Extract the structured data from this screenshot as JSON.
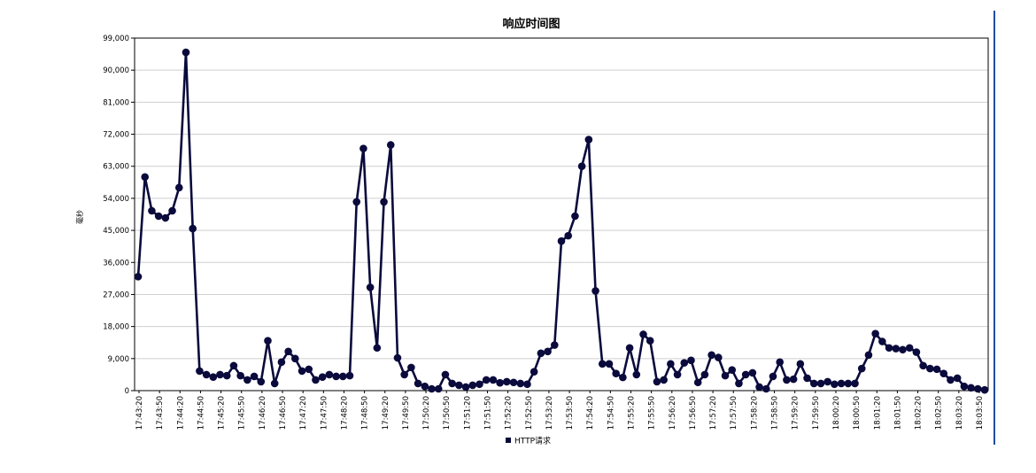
{
  "chart_data": {
    "type": "line",
    "title": "响应时间图",
    "xlabel": "",
    "ylabel": "毫秒",
    "ylim": [
      0,
      99000
    ],
    "yticks": [
      "0",
      "9,000",
      "18,000",
      "27,000",
      "36,000",
      "45,000",
      "54,000",
      "63,000",
      "72,000",
      "81,000",
      "90,000",
      "99,000"
    ],
    "ytick_values": [
      0,
      9000,
      18000,
      27000,
      36000,
      45000,
      54000,
      63000,
      72000,
      81000,
      90000,
      99000
    ],
    "xtick_labels": [
      "17:43:20",
      "17:43:50",
      "17:44:20",
      "17:44:50",
      "17:45:20",
      "17:45:50",
      "17:46:20",
      "17:46:50",
      "17:47:20",
      "17:47:50",
      "17:48:20",
      "17:48:50",
      "17:49:20",
      "17:49:50",
      "17:50:20",
      "17:50:50",
      "17:51:20",
      "17:51:50",
      "17:52:20",
      "17:52:50",
      "17:53:20",
      "17:53:50",
      "17:54:20",
      "17:54:50",
      "17:55:20",
      "17:55:50",
      "17:56:20",
      "17:56:50",
      "17:57:20",
      "17:57:50",
      "17:58:20",
      "17:58:50",
      "17:59:20",
      "17:59:50",
      "18:00:20",
      "18:00:50",
      "18:01:20",
      "18:01:50",
      "18:02:20",
      "18:02:50",
      "18:03:20",
      "18:03:50"
    ],
    "grid": true,
    "legend_position": "bottom",
    "colors": {
      "line": "#0a0a3c",
      "marker": "#0a0a3c",
      "grid": "#cfcfcf",
      "axis": "#000000"
    },
    "series": [
      {
        "name": "HTTP请求",
        "values": [
          32000,
          60000,
          50500,
          49000,
          48500,
          50500,
          57000,
          95000,
          45500,
          5500,
          4500,
          3800,
          4500,
          4200,
          7000,
          4200,
          3000,
          4000,
          2500,
          14000,
          2000,
          8000,
          11000,
          9000,
          5500,
          6000,
          3000,
          3800,
          4500,
          4000,
          4000,
          4200,
          53000,
          68000,
          29000,
          12000,
          53000,
          69000,
          9200,
          4500,
          6500,
          2000,
          1200,
          500,
          500,
          4500,
          2000,
          1500,
          1000,
          1500,
          1800,
          3000,
          3000,
          2200,
          2500,
          2300,
          2000,
          1800,
          5300,
          10500,
          11000,
          12800,
          42000,
          43500,
          49000,
          63000,
          70500,
          28000,
          7500,
          7500,
          4800,
          3700,
          12000,
          4500,
          15800,
          14000,
          2500,
          3000,
          7500,
          4500,
          7800,
          8500,
          2300,
          4500,
          10000,
          9300,
          4200,
          5800,
          2000,
          4500,
          5000,
          1000,
          500,
          4000,
          8000,
          3000,
          3200,
          7500,
          3500,
          2000,
          2000,
          2500,
          1800,
          2000,
          2000,
          2000,
          6200,
          10000,
          16000,
          13800,
          12000,
          11800,
          11500,
          12000,
          10800,
          7000,
          6200,
          6000,
          4800,
          3000,
          3500,
          1200,
          800,
          500,
          200
        ]
      }
    ]
  }
}
